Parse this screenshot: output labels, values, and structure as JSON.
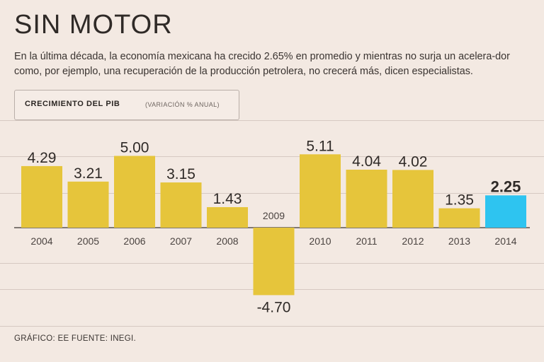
{
  "header": {
    "title": "SIN MOTOR",
    "subtitle": "En la última década, la economía mexicana ha crecido 2.65% en promedio y mientras no surja un acelera-dor como, por ejemplo, una recuperación de la producción petrolera, no crecerá más, dicen especialistas."
  },
  "chart_label": {
    "main": "CRECIMIENTO DEL PIB",
    "sub": "(VARIACIÓN % ANUAL)"
  },
  "footer": {
    "source": "GRÁFICO: EE  FUENTE: INEGI."
  },
  "colors": {
    "bar": "#e6c53b",
    "highlight": "#2ec4f0",
    "background": "#f3e9e2",
    "gridline": "#d6c9c2"
  },
  "chart_data": {
    "type": "bar",
    "title": "CRECIMIENTO DEL PIB",
    "subtitle": "(VARIACIÓN % ANUAL)",
    "categories": [
      "2004",
      "2005",
      "2006",
      "2007",
      "2008",
      "2009",
      "2010",
      "2011",
      "2012",
      "2013",
      "2014"
    ],
    "values": [
      4.29,
      3.21,
      5.0,
      3.15,
      1.43,
      -4.7,
      5.11,
      4.04,
      4.02,
      1.35,
      2.25
    ],
    "value_labels": [
      "4.29",
      "3.21",
      "5.00",
      "3.15",
      "1.43",
      "-4.70",
      "5.11",
      "4.04",
      "4.02",
      "1.35",
      "2.25"
    ],
    "highlight_category": "2014",
    "xlabel": "",
    "ylabel": "",
    "ylim": [
      -4.7,
      5.11
    ],
    "grid": true,
    "legend": "none"
  }
}
